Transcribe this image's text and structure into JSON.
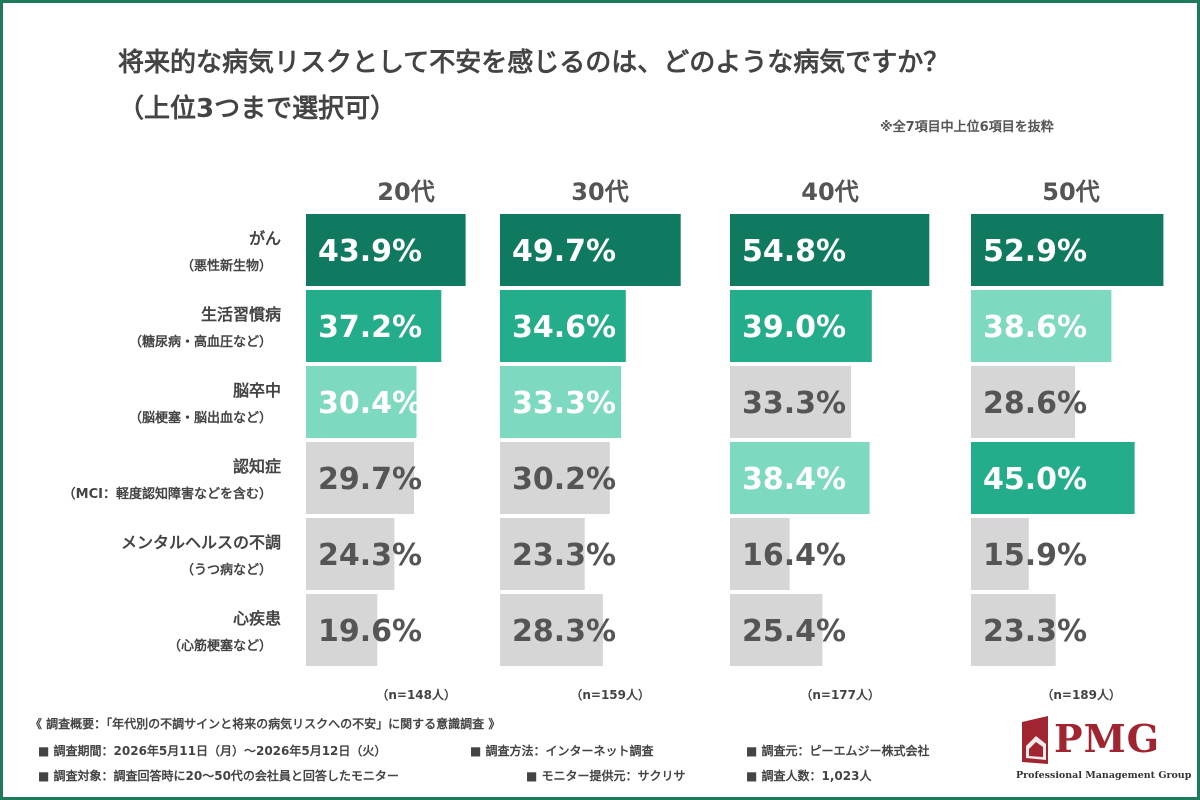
{
  "title_line1": "将来的な病気リスクとして不安を感じるのは、どのような病気ですか？",
  "title_line2": "（上位3つまで選択可）",
  "note": "※全7項目中上位6項目を抜粋",
  "chart_data": {
    "type": "bar",
    "orientation": "horizontal",
    "value_suffix": "%",
    "categories": [
      {
        "main": "がん",
        "sub": "（悪性新生物）"
      },
      {
        "main": "生活習慣病",
        "sub": "（糖尿病・高血圧など）"
      },
      {
        "main": "脳卒中",
        "sub": "（脳梗塞・脳出血など）"
      },
      {
        "main": "認知症",
        "sub": "（MCI：軽度認知障害などを含む）"
      },
      {
        "main": "メンタルヘルスの不調",
        "sub": "（うつ病など）"
      },
      {
        "main": "心疾患",
        "sub": "（心筋梗塞など）"
      }
    ],
    "series": [
      {
        "name": "20代",
        "n": "（n=148人）",
        "values": [
          43.9,
          37.2,
          30.4,
          29.7,
          24.3,
          19.6
        ]
      },
      {
        "name": "30代",
        "n": "（n=159人）",
        "values": [
          49.7,
          34.6,
          33.3,
          30.2,
          23.3,
          28.3
        ]
      },
      {
        "name": "40代",
        "n": "（n=177人）",
        "values": [
          54.8,
          39.0,
          33.3,
          38.4,
          16.4,
          25.4
        ]
      },
      {
        "name": "50代",
        "n": "（n=189人）",
        "values": [
          52.9,
          38.6,
          28.6,
          45.0,
          15.9,
          23.3
        ]
      }
    ],
    "rank_colors": {
      "1": "#0f7a5f",
      "2": "#24ad8a",
      "3": "#7dd9bf",
      "other": "#d6d6d6"
    },
    "label_colors": {
      "highlight": "#ffffff",
      "other": "#555555"
    },
    "xlim": [
      0,
      55
    ]
  },
  "footer": {
    "summary": "《 調査概要：「年代別の不調サインと将来の病気リスクへの不安」に関する意識調査 》",
    "period": "■ 調査期間：2026年5月11日（月）〜2026年5月12日（火）",
    "method": "■ 調査方法：インターネット調査",
    "source": "■ 調査元：ピーエムジー株式会社",
    "target": "■ 調査対象：調査回答時に20〜50代の会社員と回答したモニター",
    "provider": "■ モニター提供元：サクリサ",
    "count": "■ 調査人数：1,023人"
  },
  "logo": {
    "text": "PMG",
    "sub": "Professional Management Group",
    "color": "#a02530"
  }
}
